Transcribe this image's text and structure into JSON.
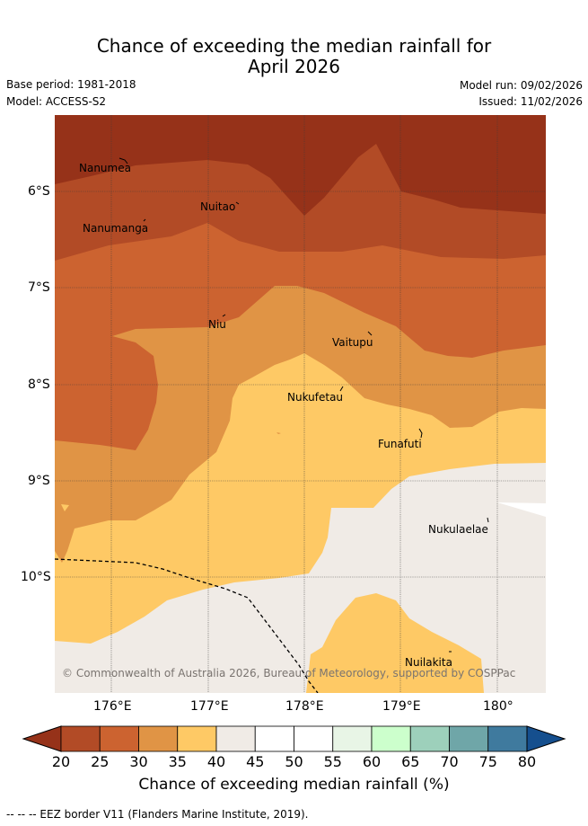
{
  "title_line1": "Chance of exceeding the median rainfall for",
  "title_line2": "April 2026",
  "base_period": "Base period: 1981-2018",
  "model": "Model: ACCESS-S2",
  "model_run": "Model run: 09/02/2026",
  "issued": "Issued: 11/02/2026",
  "map": {
    "lat_labels": [
      "6°S",
      "7°S",
      "8°S",
      "9°S",
      "10°S"
    ],
    "lon_labels": [
      "176°E",
      "177°E",
      "178°E",
      "179°E",
      "180°"
    ],
    "places": [
      "Nanumea",
      "Nuitao",
      "Nanumanga",
      "Niu",
      "Vaitupu",
      "Nukufetau",
      "Funafuti",
      "Nukulaelae",
      "Nuilakita"
    ],
    "copyright": "© Commonwealth of Australia 2026, Bureau of Meteorology, supported by COSPPac",
    "colors": {
      "c20": "#963219",
      "c25": "#b24b26",
      "c30": "#cc6330",
      "c35": "#e09445",
      "c40": "#fec965",
      "c45": "#f0ebe6",
      "c50": "#ffffff"
    }
  },
  "colorbar": {
    "ticks": [
      "20",
      "25",
      "30",
      "35",
      "40",
      "45",
      "50",
      "55",
      "60",
      "65",
      "70",
      "75",
      "80"
    ],
    "colors": [
      "#b24b26",
      "#cc6330",
      "#e09445",
      "#fec965",
      "#f0ebe6",
      "#ffffff",
      "#ffffff",
      "#e8f5e6",
      "#ccffcc",
      "#9dd0bb",
      "#6fa6a8",
      "#3f7a9e"
    ],
    "low_color": "#963219",
    "high_color": "#154f8e",
    "label": "Chance of exceeding median rainfall (%)"
  },
  "footnote": "-- -- -- EEZ border V11 (Flanders Marine Institute, 2019)."
}
